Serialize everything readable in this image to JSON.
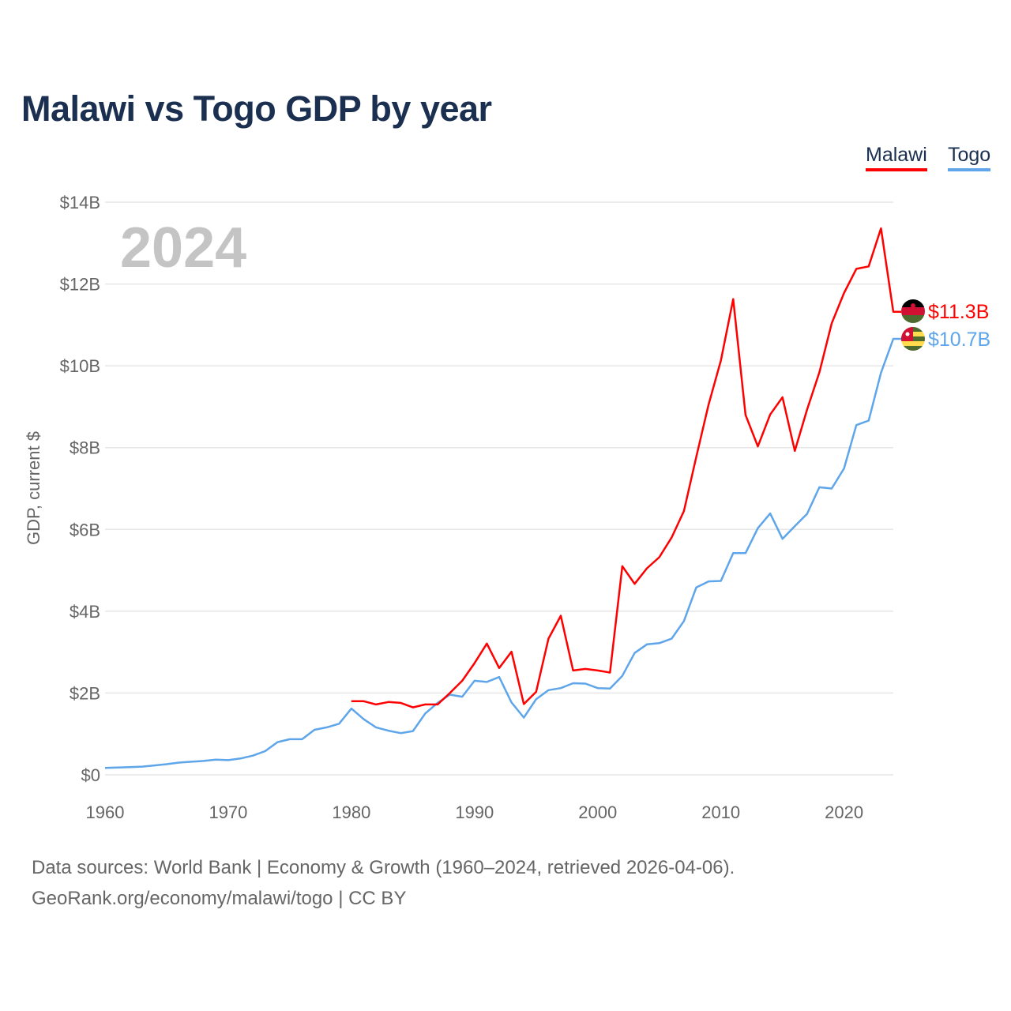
{
  "chart_data": {
    "type": "line",
    "title": "Malawi vs Togo GDP by year",
    "ylabel": "GDP, current $",
    "xlabel": "",
    "year_watermark": "2024",
    "xlim": [
      1960,
      2024
    ],
    "ylim": [
      0,
      14
    ],
    "x_ticks": [
      "1960",
      "1970",
      "1980",
      "1990",
      "2000",
      "2010",
      "2020"
    ],
    "y_ticks": [
      "$0",
      "$2B",
      "$4B",
      "$6B",
      "$8B",
      "$10B",
      "$12B",
      "$14B"
    ],
    "legend": [
      "Malawi",
      "Togo"
    ],
    "legend_position": "top-right",
    "grid": true,
    "series": [
      {
        "name": "Malawi",
        "color": "#ff0000",
        "end_label": "$11.3B",
        "start_year": 1980,
        "values": [
          1.8,
          1.8,
          1.72,
          1.78,
          1.76,
          1.65,
          1.72,
          1.72,
          2.0,
          2.3,
          2.73,
          3.21,
          2.61,
          3.01,
          1.73,
          2.03,
          3.33,
          3.89,
          2.55,
          2.59,
          2.55,
          2.5,
          5.1,
          4.67,
          5.05,
          5.32,
          5.8,
          6.45,
          7.77,
          9.05,
          10.13,
          11.63,
          8.8,
          8.03,
          8.81,
          9.23,
          7.92,
          8.93,
          9.84,
          11.04,
          11.78,
          12.37,
          12.43,
          13.36,
          11.32
        ]
      },
      {
        "name": "Togo",
        "color": "#5ea5ea",
        "end_label": "$10.7B",
        "start_year": 1960,
        "values": [
          0.17,
          0.18,
          0.19,
          0.2,
          0.23,
          0.26,
          0.3,
          0.32,
          0.34,
          0.37,
          0.36,
          0.4,
          0.47,
          0.58,
          0.8,
          0.87,
          0.87,
          1.1,
          1.16,
          1.25,
          1.62,
          1.36,
          1.16,
          1.08,
          1.02,
          1.07,
          1.5,
          1.76,
          1.96,
          1.91,
          2.3,
          2.27,
          2.39,
          1.77,
          1.4,
          1.85,
          2.07,
          2.12,
          2.24,
          2.23,
          2.12,
          2.11,
          2.42,
          2.98,
          3.19,
          3.22,
          3.33,
          3.76,
          4.58,
          4.73,
          4.74,
          5.42,
          5.42,
          6.03,
          6.39,
          5.77,
          6.08,
          6.38,
          7.03,
          7.0,
          7.49,
          8.55,
          8.66,
          9.83,
          10.66
        ]
      }
    ]
  },
  "footer": {
    "line1": "Data sources: World Bank | Economy & Growth (1960–2024, retrieved 2026-04-06).",
    "line2": "GeoRank.org/economy/malawi/togo | CC BY"
  }
}
